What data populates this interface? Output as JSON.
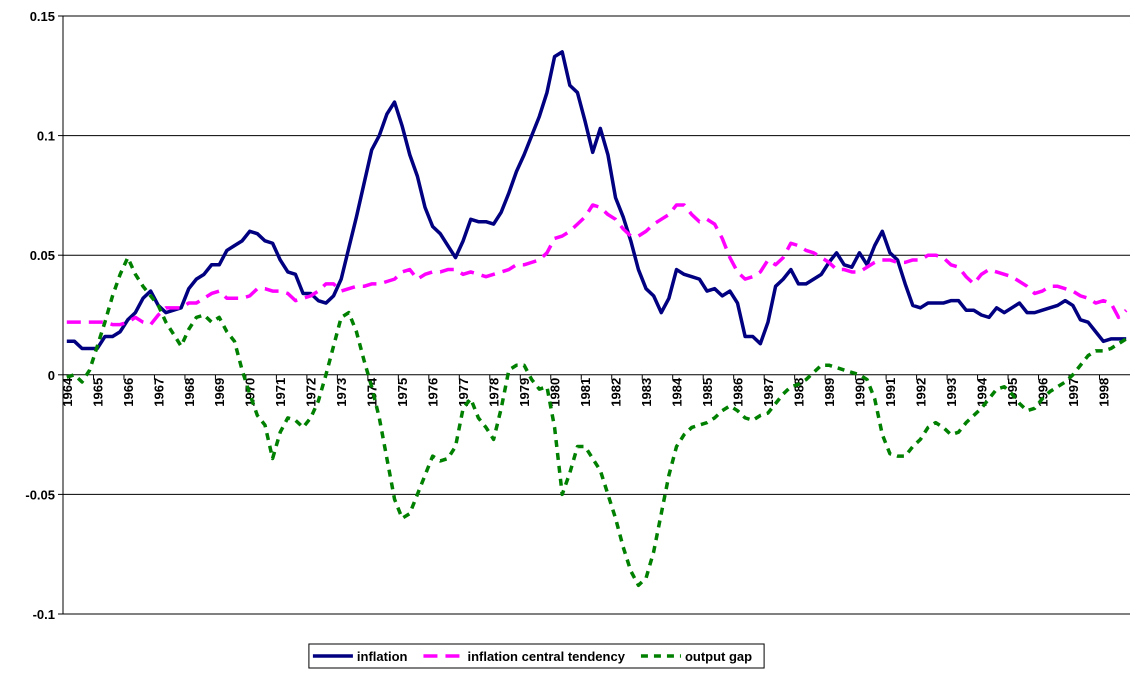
{
  "chart_data": {
    "type": "line",
    "categories": [
      "1964",
      null,
      null,
      null,
      "1965",
      null,
      null,
      null,
      "1966",
      null,
      null,
      null,
      "1967",
      null,
      null,
      null,
      "1968",
      null,
      null,
      null,
      "1969",
      null,
      null,
      null,
      "1970",
      null,
      null,
      null,
      "1971",
      null,
      null,
      null,
      "1972",
      null,
      null,
      null,
      "1973",
      null,
      null,
      null,
      "1974",
      null,
      null,
      null,
      "1975",
      null,
      null,
      null,
      "1976",
      null,
      null,
      null,
      "1977",
      null,
      null,
      null,
      "1978",
      null,
      null,
      null,
      "1979",
      null,
      null,
      null,
      "1980",
      null,
      null,
      null,
      "1981",
      null,
      null,
      null,
      "1982",
      null,
      null,
      null,
      "1983",
      null,
      null,
      null,
      "1984",
      null,
      null,
      null,
      "1985",
      null,
      null,
      null,
      "1986",
      null,
      null,
      null,
      "1987",
      null,
      null,
      null,
      "1988",
      null,
      null,
      null,
      "1989",
      null,
      null,
      null,
      "1990",
      null,
      null,
      null,
      "1991",
      null,
      null,
      null,
      "1992",
      null,
      null,
      null,
      "1993",
      null,
      null,
      null,
      "1994",
      null,
      null,
      null,
      "1995",
      null,
      null,
      null,
      "1996",
      null,
      null,
      null,
      "1997",
      null,
      null,
      null,
      "1998",
      null,
      null,
      null
    ],
    "series": [
      {
        "name": "inflation",
        "color": "#000080",
        "dash": "solid",
        "values": [
          0.014,
          0.014,
          0.011,
          0.011,
          0.011,
          0.016,
          0.016,
          0.018,
          0.023,
          0.026,
          0.032,
          0.035,
          0.029,
          0.026,
          0.027,
          0.028,
          0.036,
          0.04,
          0.042,
          0.046,
          0.046,
          0.052,
          0.054,
          0.056,
          0.06,
          0.059,
          0.056,
          0.055,
          0.048,
          0.043,
          0.042,
          0.034,
          0.034,
          0.031,
          0.03,
          0.033,
          0.04,
          0.053,
          0.066,
          0.08,
          0.094,
          0.1,
          0.109,
          0.114,
          0.104,
          0.092,
          0.083,
          0.07,
          0.062,
          0.059,
          0.054,
          0.049,
          0.056,
          0.065,
          0.064,
          0.064,
          0.063,
          0.068,
          0.076,
          0.085,
          0.092,
          0.1,
          0.108,
          0.118,
          0.133,
          0.135,
          0.121,
          0.118,
          0.106,
          0.093,
          0.103,
          0.092,
          0.074,
          0.066,
          0.056,
          0.044,
          0.036,
          0.033,
          0.026,
          0.032,
          0.044,
          0.042,
          0.041,
          0.04,
          0.035,
          0.036,
          0.033,
          0.035,
          0.03,
          0.016,
          0.016,
          0.013,
          0.022,
          0.037,
          0.04,
          0.044,
          0.038,
          0.038,
          0.04,
          0.042,
          0.047,
          0.051,
          0.046,
          0.045,
          0.051,
          0.046,
          0.054,
          0.06,
          0.051,
          0.048,
          0.038,
          0.029,
          0.028,
          0.03,
          0.03,
          0.03,
          0.031,
          0.031,
          0.027,
          0.027,
          0.025,
          0.024,
          0.028,
          0.026,
          0.028,
          0.03,
          0.026,
          0.026,
          0.027,
          0.028,
          0.029,
          0.031,
          0.029,
          0.023,
          0.022,
          0.018,
          0.014,
          0.015,
          0.015,
          0.015
        ]
      },
      {
        "name": "inflation central tendency",
        "color": "#ff00ff",
        "dash": "long",
        "values": [
          0.022,
          0.022,
          0.022,
          0.022,
          0.022,
          0.022,
          0.021,
          0.021,
          0.022,
          0.024,
          0.022,
          0.021,
          0.025,
          0.028,
          0.028,
          0.028,
          0.03,
          0.03,
          0.032,
          0.034,
          0.035,
          0.032,
          0.032,
          0.032,
          0.033,
          0.036,
          0.036,
          0.035,
          0.035,
          0.034,
          0.031,
          0.032,
          0.033,
          0.035,
          0.038,
          0.038,
          0.035,
          0.036,
          0.037,
          0.037,
          0.038,
          0.038,
          0.039,
          0.04,
          0.043,
          0.044,
          0.04,
          0.042,
          0.043,
          0.043,
          0.044,
          0.044,
          0.042,
          0.043,
          0.042,
          0.041,
          0.042,
          0.043,
          0.044,
          0.046,
          0.046,
          0.047,
          0.048,
          0.051,
          0.057,
          0.058,
          0.06,
          0.063,
          0.066,
          0.071,
          0.07,
          0.067,
          0.065,
          0.061,
          0.058,
          0.058,
          0.06,
          0.063,
          0.065,
          0.067,
          0.071,
          0.071,
          0.067,
          0.064,
          0.065,
          0.063,
          0.057,
          0.049,
          0.043,
          0.04,
          0.041,
          0.043,
          0.048,
          0.046,
          0.049,
          0.055,
          0.054,
          0.052,
          0.051,
          0.049,
          0.047,
          0.044,
          0.044,
          0.043,
          0.043,
          0.045,
          0.047,
          0.048,
          0.048,
          0.047,
          0.047,
          0.048,
          0.048,
          0.05,
          0.05,
          0.049,
          0.046,
          0.045,
          0.041,
          0.038,
          0.042,
          0.044,
          0.043,
          0.042,
          0.041,
          0.039,
          0.037,
          0.034,
          0.035,
          0.037,
          0.037,
          0.036,
          0.035,
          0.033,
          0.032,
          0.03,
          0.031,
          0.03,
          0.024,
          0.027
        ]
      },
      {
        "name": "output gap",
        "color": "#008000",
        "dash": "short",
        "values": [
          -0.001,
          0.0,
          -0.003,
          0.002,
          0.012,
          0.022,
          0.033,
          0.042,
          0.049,
          0.042,
          0.037,
          0.033,
          0.029,
          0.022,
          0.017,
          0.012,
          0.019,
          0.024,
          0.025,
          0.022,
          0.024,
          0.018,
          0.014,
          0.002,
          -0.008,
          -0.017,
          -0.021,
          -0.035,
          -0.024,
          -0.018,
          -0.019,
          -0.022,
          -0.018,
          -0.011,
          0.0,
          0.012,
          0.024,
          0.026,
          0.018,
          0.006,
          -0.005,
          -0.018,
          -0.035,
          -0.052,
          -0.06,
          -0.058,
          -0.05,
          -0.042,
          -0.034,
          -0.036,
          -0.035,
          -0.03,
          -0.014,
          -0.01,
          -0.018,
          -0.022,
          -0.027,
          -0.014,
          0.002,
          0.004,
          0.004,
          -0.002,
          -0.006,
          -0.005,
          -0.022,
          -0.05,
          -0.041,
          -0.03,
          -0.03,
          -0.035,
          -0.04,
          -0.05,
          -0.06,
          -0.072,
          -0.082,
          -0.088,
          -0.085,
          -0.074,
          -0.058,
          -0.042,
          -0.03,
          -0.025,
          -0.022,
          -0.021,
          -0.02,
          -0.018,
          -0.015,
          -0.013,
          -0.015,
          -0.018,
          -0.019,
          -0.017,
          -0.016,
          -0.012,
          -0.008,
          -0.005,
          -0.004,
          -0.002,
          0.001,
          0.004,
          0.004,
          0.003,
          0.002,
          0.001,
          0.0,
          -0.002,
          -0.01,
          -0.025,
          -0.033,
          -0.034,
          -0.034,
          -0.03,
          -0.027,
          -0.022,
          -0.02,
          -0.022,
          -0.025,
          -0.024,
          -0.02,
          -0.017,
          -0.014,
          -0.01,
          -0.006,
          -0.005,
          -0.008,
          -0.012,
          -0.015,
          -0.014,
          -0.01,
          -0.007,
          -0.005,
          -0.003,
          0.0,
          0.004,
          0.008,
          0.01,
          0.01,
          0.011,
          0.013,
          0.015
        ]
      }
    ],
    "ylim": [
      -0.1,
      0.15
    ],
    "yticks": [
      -0.1,
      -0.05,
      0,
      0.05,
      0.1,
      0.15
    ],
    "grid": true,
    "legend": "bottom"
  }
}
